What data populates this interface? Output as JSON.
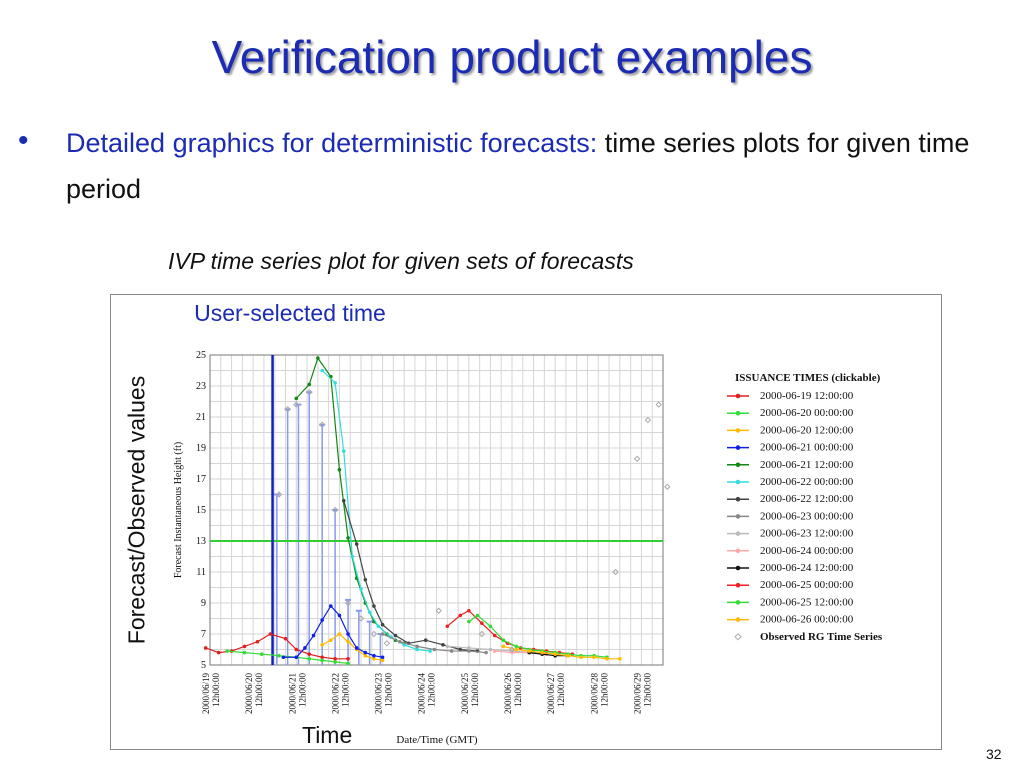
{
  "slide": {
    "title": "Verification product examples",
    "bullet_blue": "Detailed graphics for deterministic forecasts:",
    "bullet_black": " time series plots for given time period",
    "caption": "IVP time series plot for given sets of forecasts",
    "user_selected": "User-selected time",
    "time_label": "Time",
    "y_outer_label": "Forecast/Observed values",
    "page_number": "32"
  },
  "chart_data": {
    "type": "line",
    "ylabel": "Forecast Instantaneous Height (ft)",
    "xlabel": "Date/Time (GMT)",
    "ylim": [
      5,
      25
    ],
    "yticks": [
      5,
      7,
      9,
      11,
      13,
      15,
      17,
      19,
      21,
      23,
      25
    ],
    "x_range": [
      0,
      10.5
    ],
    "x_unit": "days after 2000/06/19 12:00:00",
    "xticks": [
      {
        "x": 0,
        "line1": "2000/06/19",
        "line2": "12h00:00"
      },
      {
        "x": 1,
        "line1": "2000/06/20",
        "line2": "12h00:00"
      },
      {
        "x": 2,
        "line1": "2000/06/21",
        "line2": "12h00:00"
      },
      {
        "x": 3,
        "line1": "2000/06/22",
        "line2": "12h00:00"
      },
      {
        "x": 4,
        "line1": "2000/06/23",
        "line2": "12h00:00"
      },
      {
        "x": 5,
        "line1": "2000/06/24",
        "line2": "12h00:00"
      },
      {
        "x": 6,
        "line1": "2000/06/25",
        "line2": "12h00:00"
      },
      {
        "x": 7,
        "line1": "2000/06/26",
        "line2": "12h00:00"
      },
      {
        "x": 8,
        "line1": "2000/06/27",
        "line2": "12h00:00"
      },
      {
        "x": 9,
        "line1": "2000/06/28",
        "line2": "12h00:00"
      },
      {
        "x": 10,
        "line1": "2000/06/29",
        "line2": "12h00:00"
      }
    ],
    "threshold": {
      "y": 13,
      "color": "#33cc33"
    },
    "selected_time": {
      "x": 1.45,
      "color": "#1020c0"
    },
    "legend_title": "ISSUANCE TIMES (clickable)",
    "legend_position": "right",
    "series": [
      {
        "name": "2000-06-19 12:00:00",
        "color": "#e02020",
        "points": [
          [
            -0.1,
            6.1
          ],
          [
            0.2,
            5.8
          ],
          [
            0.5,
            5.9
          ],
          [
            0.8,
            6.2
          ],
          [
            1.1,
            6.5
          ],
          [
            1.4,
            7.0
          ],
          [
            1.75,
            6.7
          ],
          [
            2.0,
            6.0
          ],
          [
            2.3,
            5.7
          ],
          [
            2.6,
            5.5
          ],
          [
            2.9,
            5.4
          ],
          [
            3.2,
            5.4
          ]
        ]
      },
      {
        "name": "2000-06-20 00:00:00",
        "color": "#33dd33",
        "points": [
          [
            0.4,
            5.9
          ],
          [
            0.8,
            5.8
          ],
          [
            1.2,
            5.7
          ],
          [
            1.6,
            5.6
          ],
          [
            2.0,
            5.5
          ],
          [
            2.3,
            5.4
          ],
          [
            2.6,
            5.3
          ],
          [
            2.9,
            5.2
          ],
          [
            3.2,
            5.1
          ]
        ]
      },
      {
        "name": "2000-06-20 12:00:00",
        "color": "#ffbb00",
        "points": [
          [
            2.6,
            6.3
          ],
          [
            2.8,
            6.6
          ],
          [
            3.0,
            7.0
          ],
          [
            3.2,
            6.5
          ],
          [
            3.4,
            6.0
          ],
          [
            3.6,
            5.6
          ],
          [
            3.8,
            5.4
          ],
          [
            4.0,
            5.3
          ]
        ]
      },
      {
        "name": "2000-06-21 00:00:00",
        "color": "#1020e0",
        "points": [
          [
            1.7,
            5.5
          ],
          [
            2.0,
            5.5
          ],
          [
            2.2,
            6.1
          ],
          [
            2.4,
            6.9
          ],
          [
            2.6,
            7.9
          ],
          [
            2.8,
            8.8
          ],
          [
            3.0,
            8.2
          ],
          [
            3.2,
            7.0
          ],
          [
            3.4,
            6.1
          ],
          [
            3.6,
            5.8
          ],
          [
            3.8,
            5.6
          ],
          [
            4.0,
            5.5
          ]
        ]
      },
      {
        "name": "2000-06-21 12:00:00",
        "color": "#118811",
        "points": [
          [
            2.0,
            22.2
          ],
          [
            2.3,
            23.1
          ],
          [
            2.5,
            24.8
          ],
          [
            2.8,
            23.6
          ],
          [
            3.0,
            17.6
          ],
          [
            3.2,
            13.2
          ],
          [
            3.4,
            10.6
          ],
          [
            3.6,
            9.0
          ],
          [
            3.8,
            7.8
          ],
          [
            4.1,
            7.0
          ],
          [
            4.3,
            6.6
          ],
          [
            4.5,
            6.4
          ]
        ]
      },
      {
        "name": "2000-06-22 00:00:00",
        "color": "#33dddd",
        "points": [
          [
            2.6,
            24.0
          ],
          [
            2.9,
            23.2
          ],
          [
            3.1,
            18.8
          ],
          [
            3.3,
            12.0
          ],
          [
            3.5,
            9.9
          ],
          [
            3.7,
            8.4
          ],
          [
            3.9,
            7.5
          ],
          [
            4.2,
            6.8
          ],
          [
            4.5,
            6.3
          ],
          [
            4.8,
            6.0
          ],
          [
            5.1,
            5.9
          ]
        ]
      },
      {
        "name": "2000-06-22 12:00:00",
        "color": "#444444",
        "points": [
          [
            3.1,
            15.6
          ],
          [
            3.4,
            12.8
          ],
          [
            3.6,
            10.5
          ],
          [
            3.8,
            8.8
          ],
          [
            4.0,
            7.6
          ],
          [
            4.3,
            6.9
          ],
          [
            4.6,
            6.4
          ],
          [
            5.0,
            6.6
          ],
          [
            5.4,
            6.3
          ],
          [
            5.8,
            6.0
          ],
          [
            6.2,
            5.9
          ]
        ]
      },
      {
        "name": "2000-06-23 00:00:00",
        "color": "#888888",
        "points": [
          [
            4.0,
            7.0
          ],
          [
            4.4,
            6.5
          ],
          [
            4.8,
            6.2
          ],
          [
            5.2,
            6.0
          ],
          [
            5.6,
            5.9
          ],
          [
            6.0,
            5.9
          ],
          [
            6.4,
            5.8
          ]
        ]
      },
      {
        "name": "2000-06-23 12:00:00",
        "color": "#bbbbbb",
        "points": [
          [
            5.5,
            6.2
          ],
          [
            6.0,
            6.1
          ],
          [
            6.5,
            6.0
          ],
          [
            7.0,
            5.9
          ],
          [
            7.5,
            5.8
          ]
        ]
      },
      {
        "name": "2000-06-24 00:00:00",
        "color": "#ffaaaa",
        "points": [
          [
            6.6,
            5.9
          ],
          [
            7.0,
            5.8
          ],
          [
            7.4,
            5.8
          ],
          [
            7.8,
            5.7
          ]
        ]
      },
      {
        "name": "2000-06-24 12:00:00",
        "color": "#111111",
        "points": [
          [
            7.4,
            5.8
          ],
          [
            7.7,
            5.7
          ],
          [
            8.0,
            5.6
          ],
          [
            8.3,
            5.6
          ]
        ]
      },
      {
        "name": "2000-06-25 00:00:00",
        "color": "#ee2222",
        "points": [
          [
            5.5,
            7.5
          ],
          [
            5.8,
            8.2
          ],
          [
            6.0,
            8.5
          ],
          [
            6.3,
            7.7
          ],
          [
            6.6,
            6.9
          ],
          [
            6.9,
            6.4
          ],
          [
            7.2,
            6.1
          ],
          [
            7.5,
            6.0
          ],
          [
            7.8,
            5.9
          ],
          [
            8.1,
            5.8
          ],
          [
            8.4,
            5.7
          ]
        ]
      },
      {
        "name": "2000-06-25 12:00:00",
        "color": "#33dd33",
        "points": [
          [
            6.0,
            7.8
          ],
          [
            6.2,
            8.2
          ],
          [
            6.5,
            7.5
          ],
          [
            6.8,
            6.6
          ],
          [
            7.1,
            6.2
          ],
          [
            7.4,
            6.0
          ],
          [
            7.7,
            5.9
          ],
          [
            8.0,
            5.8
          ],
          [
            8.3,
            5.7
          ],
          [
            8.6,
            5.6
          ],
          [
            8.9,
            5.6
          ],
          [
            9.2,
            5.5
          ]
        ]
      },
      {
        "name": "2000-06-26 00:00:00",
        "color": "#ffbb00",
        "points": [
          [
            6.8,
            6.2
          ],
          [
            7.1,
            6.0
          ],
          [
            7.4,
            5.9
          ],
          [
            7.7,
            5.8
          ],
          [
            8.0,
            5.7
          ],
          [
            8.3,
            5.6
          ],
          [
            8.6,
            5.5
          ],
          [
            8.9,
            5.5
          ],
          [
            9.2,
            5.4
          ],
          [
            9.5,
            5.4
          ]
        ]
      }
    ],
    "observed": {
      "name": "Observed RG Time Series",
      "color": "#aaaaaa",
      "points": [
        [
          1.6,
          16.0
        ],
        [
          1.8,
          21.5
        ],
        [
          2.0,
          21.8
        ],
        [
          2.3,
          22.6
        ],
        [
          2.6,
          20.5
        ],
        [
          2.9,
          15.0
        ],
        [
          3.2,
          9.0
        ],
        [
          3.5,
          8.0
        ],
        [
          3.8,
          7.0
        ],
        [
          4.1,
          6.4
        ],
        [
          5.3,
          8.5
        ],
        [
          6.3,
          7.0
        ],
        [
          7.0,
          6.0
        ],
        [
          9.4,
          11.0
        ],
        [
          9.9,
          18.3
        ],
        [
          10.15,
          20.8
        ],
        [
          10.4,
          21.8
        ],
        [
          10.6,
          16.5
        ]
      ]
    },
    "observed_stems": [
      {
        "x": 1.55,
        "top": 16.0
      },
      {
        "x": 1.8,
        "top": 21.5
      },
      {
        "x": 2.05,
        "top": 21.8
      },
      {
        "x": 2.3,
        "top": 22.6
      },
      {
        "x": 2.6,
        "top": 20.5
      },
      {
        "x": 2.9,
        "top": 15.0
      },
      {
        "x": 3.2,
        "top": 9.2
      },
      {
        "x": 3.45,
        "top": 8.5
      },
      {
        "x": 3.7,
        "top": 7.8
      },
      {
        "x": 3.95,
        "top": 7.0
      }
    ]
  }
}
